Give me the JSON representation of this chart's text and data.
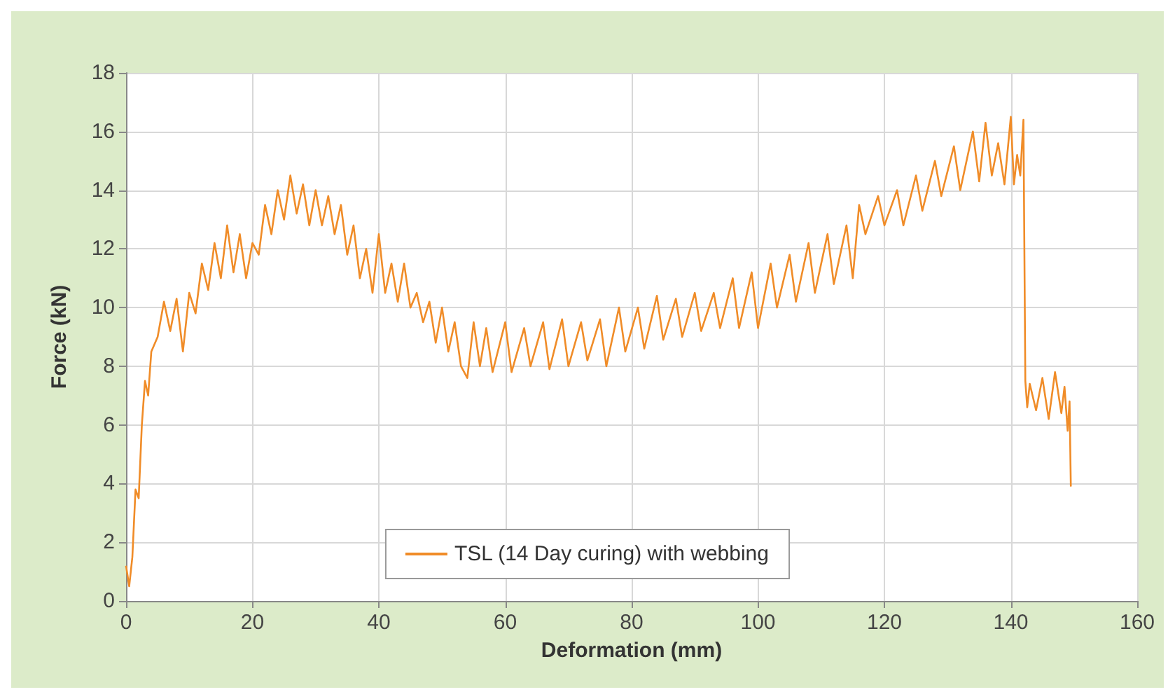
{
  "chart_data": {
    "type": "line",
    "xlabel": "Deformation (mm)",
    "ylabel": "Force (kN)",
    "xlim": [
      0,
      160
    ],
    "xticks": [
      0,
      20,
      40,
      60,
      80,
      100,
      120,
      140,
      160
    ],
    "ylim": [
      0,
      18
    ],
    "yticks": [
      0,
      2,
      4,
      6,
      8,
      10,
      12,
      14,
      16,
      18
    ],
    "grid": true,
    "legend": "bottom",
    "marker": "none",
    "line_style": "solid",
    "series": [
      {
        "name": "TSL (14 Day curing) with webbing",
        "color": "#f08c28",
        "x": [
          0,
          0.5,
          1,
          1.5,
          2,
          2.5,
          3,
          3.5,
          4,
          5,
          6,
          7,
          8,
          9,
          10,
          11,
          12,
          13,
          14,
          15,
          16,
          17,
          18,
          19,
          20,
          21,
          22,
          23,
          24,
          25,
          26,
          27,
          28,
          29,
          30,
          31,
          32,
          33,
          34,
          35,
          36,
          37,
          38,
          39,
          40,
          41,
          42,
          43,
          44,
          45,
          46,
          47,
          48,
          49,
          50,
          51,
          52,
          53,
          54,
          55,
          56,
          57,
          58,
          60,
          61,
          63,
          64,
          66,
          67,
          69,
          70,
          72,
          73,
          75,
          76,
          78,
          79,
          81,
          82,
          84,
          85,
          87,
          88,
          90,
          91,
          93,
          94,
          96,
          97,
          99,
          100,
          102,
          103,
          105,
          106,
          108,
          109,
          111,
          112,
          114,
          115,
          116,
          117,
          119,
          120,
          122,
          123,
          125,
          126,
          128,
          129,
          131,
          132,
          134,
          135,
          136,
          137,
          138,
          139,
          140,
          140.5,
          141,
          141.5,
          142,
          142.3,
          142.6,
          143,
          144,
          145,
          146,
          147,
          148,
          148.5,
          149,
          149.3,
          149.5
        ],
        "values": [
          1.2,
          0.5,
          1.5,
          3.8,
          3.5,
          6,
          7.5,
          7,
          8.5,
          9,
          10.2,
          9.2,
          10.3,
          8.5,
          10.5,
          9.8,
          11.5,
          10.6,
          12.2,
          11,
          12.8,
          11.2,
          12.5,
          11,
          12.2,
          11.8,
          13.5,
          12.5,
          14,
          13,
          14.5,
          13.2,
          14.2,
          12.8,
          14,
          12.8,
          13.8,
          12.5,
          13.5,
          11.8,
          12.8,
          11,
          12,
          10.5,
          12.5,
          10.5,
          11.5,
          10.2,
          11.5,
          10,
          10.5,
          9.5,
          10.2,
          8.8,
          10,
          8.5,
          9.5,
          8,
          7.6,
          9.5,
          8,
          9.3,
          7.8,
          9.5,
          7.8,
          9.3,
          8,
          9.5,
          7.9,
          9.6,
          8,
          9.5,
          8.2,
          9.6,
          8,
          10,
          8.5,
          10,
          8.6,
          10.4,
          8.9,
          10.3,
          9,
          10.5,
          9.2,
          10.5,
          9.3,
          11,
          9.3,
          11.2,
          9.3,
          11.5,
          10,
          11.8,
          10.2,
          12.2,
          10.5,
          12.5,
          10.8,
          12.8,
          11,
          13.5,
          12.5,
          13.8,
          12.8,
          14,
          12.8,
          14.5,
          13.3,
          15,
          13.8,
          15.5,
          14,
          16,
          14.3,
          16.3,
          14.5,
          15.6,
          14.2,
          16.5,
          14.2,
          15.2,
          14.5,
          16.4,
          7.5,
          6.6,
          7.4,
          6.5,
          7.6,
          6.2,
          7.8,
          6.4,
          7.3,
          5.8,
          6.8,
          3.9
        ]
      }
    ]
  }
}
